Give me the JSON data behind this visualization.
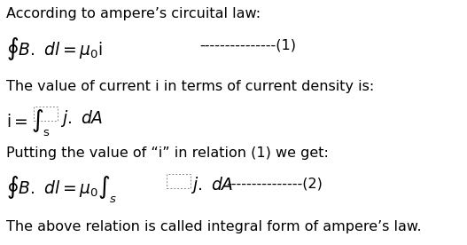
{
  "bg_color": "#ffffff",
  "text_color": "#000000",
  "line1_text": "According to ampere’s circuital law:",
  "line2_eq": "$\\oint B.\\ dl = \\mu_0\\mathrm{i}$",
  "line2_dash": "---------------(1)",
  "line3_text": "The value of current i in terms of current density is:",
  "line4_left": "$\\mathrm{i{=}\\int_s}$",
  "line4_right": "$j.\\ dA$",
  "line5_text": "Putting the value of “i” in relation (1) we get:",
  "line6_eq": "$\\oint B.\\ dl = \\mu_0 \\int_s$",
  "line6_mid": "$j.\\ dA$",
  "line6_dash": "---------------(2)",
  "line7_text": "The above relation is called integral form of ampere’s law.",
  "fontsize_text": 11.5,
  "fontsize_math": 13.5,
  "fig_w": 5.27,
  "fig_h": 2.76,
  "dpi": 100
}
